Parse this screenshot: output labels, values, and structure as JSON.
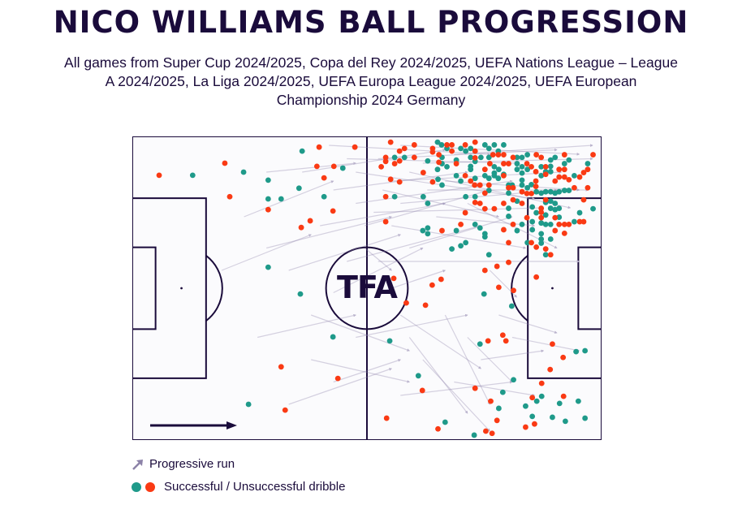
{
  "title": "NICO WILLIAMS BALL PROGRESSION",
  "subtitle_lines": [
    "All games from Super Cup 2024/2025, Copa del Rey 2024/2025, UEFA Nations League – League",
    "A 2024/2025, La Liga 2024/2025, UEFA Europa League 2024/2025, UEFA European",
    "Championship 2024 Germany"
  ],
  "logo_text": "TFA",
  "legend": {
    "run_label": "Progressive run",
    "dribble_label": "Successful / Unsuccessful dribble"
  },
  "colors": {
    "successful": "#1f9a8a",
    "unsuccessful": "#fa3a14",
    "run": "#8c82a8",
    "lines": "#1a0b3b"
  },
  "chart_data": {
    "type": "scatter",
    "title": "NICO WILLIAMS BALL PROGRESSION",
    "pitch_length_m": 105,
    "pitch_width_m": 68,
    "attack_direction": "left-to-right",
    "progressive_runs": [
      [
        38,
        8,
        70,
        3
      ],
      [
        45,
        12,
        75,
        8
      ],
      [
        50,
        15,
        85,
        10
      ],
      [
        55,
        5,
        95,
        3
      ],
      [
        42,
        20,
        70,
        15
      ],
      [
        30,
        25,
        58,
        18
      ],
      [
        35,
        30,
        60,
        22
      ],
      [
        60,
        2,
        100,
        4
      ],
      [
        58,
        10,
        96,
        8
      ],
      [
        65,
        6,
        103,
        5
      ],
      [
        52,
        20,
        80,
        12
      ],
      [
        48,
        28,
        78,
        20
      ],
      [
        62,
        25,
        85,
        18
      ],
      [
        70,
        10,
        100,
        12
      ],
      [
        75,
        15,
        95,
        25
      ],
      [
        68,
        18,
        90,
        20
      ],
      [
        55,
        35,
        70,
        30
      ],
      [
        40,
        40,
        62,
        48
      ],
      [
        45,
        55,
        60,
        50
      ],
      [
        35,
        60,
        58,
        52
      ],
      [
        60,
        58,
        85,
        55
      ],
      [
        62,
        45,
        75,
        62
      ],
      [
        70,
        40,
        80,
        60
      ],
      [
        75,
        45,
        85,
        55
      ],
      [
        82,
        40,
        95,
        44
      ],
      [
        78,
        50,
        92,
        48
      ],
      [
        20,
        30,
        40,
        22
      ],
      [
        25,
        18,
        45,
        10
      ],
      [
        30,
        8,
        50,
        6
      ],
      [
        45,
        35,
        65,
        25
      ],
      [
        55,
        28,
        100,
        28
      ],
      [
        60,
        15,
        95,
        12
      ],
      [
        58,
        20,
        88,
        25
      ],
      [
        66,
        12,
        102,
        12
      ],
      [
        72,
        4,
        103,
        2
      ],
      [
        60,
        40,
        78,
        52
      ],
      [
        80,
        30,
        86,
        36
      ],
      [
        50,
        45,
        75,
        40
      ],
      [
        40,
        50,
        62,
        55
      ],
      [
        65,
        50,
        80,
        66
      ],
      [
        72,
        55,
        90,
        58
      ],
      [
        85,
        45,
        100,
        48
      ],
      [
        52,
        25,
        58,
        30
      ],
      [
        28,
        45,
        50,
        40
      ],
      [
        44,
        2,
        80,
        4
      ],
      [
        50,
        8,
        90,
        14
      ],
      [
        56,
        12,
        82,
        18
      ],
      [
        62,
        8,
        98,
        16
      ],
      [
        48,
        5,
        86,
        6
      ],
      [
        54,
        17,
        92,
        16
      ]
    ],
    "successful_dribbles": [
      [
        13.5,
        8.7
      ],
      [
        24.9,
        8.0
      ],
      [
        30.4,
        9.8
      ],
      [
        30.4,
        14.0
      ],
      [
        33.3,
        14.0
      ],
      [
        38.0,
        3.3
      ],
      [
        37.3,
        11.6
      ],
      [
        42.9,
        13.5
      ],
      [
        30.4,
        29.3
      ],
      [
        37.6,
        35.3
      ],
      [
        44.9,
        44.9
      ],
      [
        26.0,
        60.0
      ],
      [
        47.1,
        7.1
      ],
      [
        68.3,
        1.3
      ],
      [
        69.2,
        1.9
      ],
      [
        70.4,
        2.7
      ],
      [
        73.5,
        2.7
      ],
      [
        74.6,
        3.3
      ],
      [
        75.7,
        2.7
      ],
      [
        78.9,
        1.9
      ],
      [
        81.0,
        1.9
      ],
      [
        83.1,
        1.9
      ],
      [
        79.8,
        2.7
      ],
      [
        81.9,
        3.3
      ],
      [
        58.7,
        4.7
      ],
      [
        60.9,
        4.7
      ],
      [
        66.1,
        5.5
      ],
      [
        69.3,
        4.7
      ],
      [
        69.3,
        6.1
      ],
      [
        70.4,
        6.8
      ],
      [
        72.5,
        5.3
      ],
      [
        75.7,
        4.7
      ],
      [
        75.7,
        6.7
      ],
      [
        75.7,
        7.4
      ],
      [
        76.7,
        5.6
      ],
      [
        78.0,
        4.7
      ],
      [
        79.8,
        4.7
      ],
      [
        81.0,
        6.8
      ],
      [
        82.0,
        7.4
      ],
      [
        83.1,
        8.5
      ],
      [
        81.0,
        8.2
      ],
      [
        81.9,
        9.4
      ],
      [
        86.1,
        4.7
      ],
      [
        87.2,
        4.7
      ],
      [
        88.4,
        4.1
      ],
      [
        86.1,
        6.1
      ],
      [
        86.1,
        7.4
      ],
      [
        87.2,
        6.8
      ],
      [
        87.2,
        8.2
      ],
      [
        88.4,
        7.4
      ],
      [
        91.5,
        6.8
      ],
      [
        92.5,
        7.9
      ],
      [
        93.6,
        5.3
      ],
      [
        93.6,
        6.7
      ],
      [
        93.6,
        7.9
      ],
      [
        94.6,
        4.7
      ],
      [
        96.7,
        6.1
      ],
      [
        97.7,
        5.3
      ],
      [
        101.9,
        6.1
      ],
      [
        68.3,
        7.4
      ],
      [
        68.4,
        9.6
      ],
      [
        69.3,
        10.9
      ],
      [
        72.5,
        8.8
      ],
      [
        73.5,
        10.0
      ],
      [
        76.7,
        9.4
      ],
      [
        78.9,
        8.8
      ],
      [
        79.8,
        9.4
      ],
      [
        81.0,
        8.8
      ],
      [
        84.2,
        10.9
      ],
      [
        84.2,
        12.7
      ],
      [
        85.0,
        10.9
      ],
      [
        87.2,
        9.8
      ],
      [
        87.2,
        10.9
      ],
      [
        88.4,
        11.5
      ],
      [
        89.3,
        10.8
      ],
      [
        90.4,
        12.4
      ],
      [
        91.5,
        12.7
      ],
      [
        92.5,
        12.4
      ],
      [
        93.6,
        12.4
      ],
      [
        94.6,
        12.7
      ],
      [
        95.5,
        12.4
      ],
      [
        96.7,
        12.1
      ],
      [
        97.7,
        12.1
      ],
      [
        98.9,
        8.8
      ],
      [
        91.5,
        8.8
      ],
      [
        65.1,
        13.5
      ],
      [
        66.1,
        15.0
      ],
      [
        58.7,
        13.5
      ],
      [
        74.6,
        13.5
      ],
      [
        76.7,
        13.5
      ],
      [
        79.8,
        12.1
      ],
      [
        84.2,
        16.1
      ],
      [
        84.2,
        17.9
      ],
      [
        86.1,
        14.5
      ],
      [
        89.5,
        15.8
      ],
      [
        90.4,
        17.1
      ],
      [
        92.5,
        14.8
      ],
      [
        93.6,
        14.5
      ],
      [
        94.6,
        15.0
      ],
      [
        94.6,
        16.4
      ],
      [
        95.5,
        16.1
      ],
      [
        93.6,
        16.1
      ],
      [
        92.5,
        17.6
      ],
      [
        91.5,
        19.4
      ],
      [
        92.5,
        19.7
      ],
      [
        93.6,
        19.7
      ],
      [
        95.5,
        18.1
      ],
      [
        98.9,
        19.1
      ],
      [
        100.1,
        17.1
      ],
      [
        103.1,
        16.2
      ],
      [
        65.0,
        21.1
      ],
      [
        66.1,
        20.5
      ],
      [
        66.1,
        21.8
      ],
      [
        72.5,
        21.1
      ],
      [
        76.7,
        19.7
      ],
      [
        77.8,
        20.5
      ],
      [
        78.9,
        21.8
      ],
      [
        78.9,
        22.5
      ],
      [
        86.1,
        21.1
      ],
      [
        87.2,
        19.7
      ],
      [
        89.5,
        19.1
      ],
      [
        89.5,
        20.9
      ],
      [
        91.5,
        21.8
      ],
      [
        91.5,
        23.0
      ],
      [
        91.5,
        23.9
      ],
      [
        88.4,
        23.8
      ],
      [
        93.6,
        23.0
      ],
      [
        71.5,
        25.2
      ],
      [
        73.5,
        24.5
      ],
      [
        74.6,
        23.8
      ],
      [
        79.8,
        26.5
      ],
      [
        92.5,
        26.5
      ],
      [
        84.9,
        38.0
      ],
      [
        77.8,
        46.5
      ],
      [
        85.3,
        54.5
      ],
      [
        82.9,
        57.3
      ],
      [
        88.0,
        60.4
      ],
      [
        90.5,
        59.3
      ],
      [
        91.6,
        58.2
      ],
      [
        99.8,
        59.3
      ],
      [
        96.9,
        63.8
      ],
      [
        94.0,
        62.9
      ],
      [
        101.3,
        63.1
      ],
      [
        99.3,
        48.2
      ],
      [
        101.3,
        48.0
      ],
      [
        95.6,
        59.8
      ],
      [
        57.6,
        45.8
      ],
      [
        64.0,
        53.6
      ],
      [
        70.0,
        64.0
      ],
      [
        76.5,
        66.9
      ],
      [
        82.0,
        60.9
      ],
      [
        89.5,
        62.7
      ],
      [
        78.7,
        35.3
      ]
    ],
    "unsuccessful_dribbles": [
      [
        6.0,
        8.7
      ],
      [
        20.7,
        6.0
      ],
      [
        21.8,
        13.5
      ],
      [
        30.4,
        16.4
      ],
      [
        37.8,
        20.4
      ],
      [
        39.8,
        18.9
      ],
      [
        41.8,
        2.4
      ],
      [
        41.3,
        6.7
      ],
      [
        42.9,
        9.3
      ],
      [
        45.1,
        6.7
      ],
      [
        44.9,
        16.7
      ],
      [
        49.8,
        2.4
      ],
      [
        33.3,
        51.6
      ],
      [
        34.2,
        61.3
      ],
      [
        46.0,
        54.2
      ],
      [
        57.8,
        1.3
      ],
      [
        59.8,
        3.3
      ],
      [
        60.9,
        2.7
      ],
      [
        63.1,
        1.9
      ],
      [
        67.2,
        2.7
      ],
      [
        67.2,
        3.5
      ],
      [
        68.6,
        4.1
      ],
      [
        70.4,
        1.9
      ],
      [
        71.5,
        1.9
      ],
      [
        71.5,
        3.3
      ],
      [
        74.5,
        1.9
      ],
      [
        76.7,
        1.3
      ],
      [
        76.7,
        3.3
      ],
      [
        76.7,
        4.8
      ],
      [
        80.7,
        4.1
      ],
      [
        81.9,
        4.1
      ],
      [
        83.1,
        4.1
      ],
      [
        85.2,
        4.7
      ],
      [
        90.4,
        4.1
      ],
      [
        91.5,
        4.7
      ],
      [
        96.7,
        4.1
      ],
      [
        103.1,
        4.1
      ],
      [
        56.7,
        4.7
      ],
      [
        56.7,
        5.6
      ],
      [
        58.7,
        6.1
      ],
      [
        59.8,
        5.5
      ],
      [
        63.1,
        4.7
      ],
      [
        55.7,
        6.8
      ],
      [
        65.1,
        8.1
      ],
      [
        68.6,
        5.8
      ],
      [
        72.5,
        6.1
      ],
      [
        78.9,
        7.4
      ],
      [
        80.0,
        6.1
      ],
      [
        83.1,
        6.1
      ],
      [
        84.2,
        6.1
      ],
      [
        88.3,
        6.1
      ],
      [
        89.3,
        6.8
      ],
      [
        90.3,
        7.9
      ],
      [
        92.5,
        6.8
      ],
      [
        95.5,
        7.4
      ],
      [
        96.7,
        7.4
      ],
      [
        101.9,
        7.4
      ],
      [
        101.0,
        8.1
      ],
      [
        57.8,
        9.6
      ],
      [
        59.8,
        10.2
      ],
      [
        67.2,
        10.2
      ],
      [
        74.5,
        8.8
      ],
      [
        75.7,
        10.0
      ],
      [
        76.6,
        10.9
      ],
      [
        77.8,
        10.9
      ],
      [
        79.8,
        10.9
      ],
      [
        83.1,
        8.8
      ],
      [
        84.2,
        11.5
      ],
      [
        85.2,
        11.5
      ],
      [
        87.2,
        12.4
      ],
      [
        88.3,
        12.8
      ],
      [
        89.3,
        12.8
      ],
      [
        90.3,
        10.0
      ],
      [
        90.3,
        11.2
      ],
      [
        92.5,
        8.5
      ],
      [
        94.6,
        10.0
      ],
      [
        95.5,
        9.1
      ],
      [
        96.7,
        9.1
      ],
      [
        97.7,
        9.7
      ],
      [
        98.9,
        11.5
      ],
      [
        100.1,
        9.1
      ],
      [
        101.9,
        11.5
      ],
      [
        56.7,
        13.5
      ],
      [
        78.9,
        12.7
      ],
      [
        76.7,
        14.8
      ],
      [
        77.8,
        15.0
      ],
      [
        78.9,
        16.2
      ],
      [
        81.0,
        16.2
      ],
      [
        83.1,
        15.0
      ],
      [
        85.2,
        14.2
      ],
      [
        87.2,
        15.0
      ],
      [
        92.5,
        14.2
      ],
      [
        101.0,
        14.2
      ],
      [
        74.5,
        17.1
      ],
      [
        56.7,
        19.1
      ],
      [
        69.3,
        21.1
      ],
      [
        73.5,
        19.7
      ],
      [
        83.1,
        20.9
      ],
      [
        85.2,
        19.7
      ],
      [
        84.2,
        23.8
      ],
      [
        88.3,
        18.2
      ],
      [
        89.3,
        23.8
      ],
      [
        90.4,
        24.8
      ],
      [
        92.5,
        25.2
      ],
      [
        93.6,
        26.5
      ],
      [
        94.6,
        18.2
      ],
      [
        95.5,
        19.7
      ],
      [
        96.7,
        19.7
      ],
      [
        97.7,
        19.7
      ],
      [
        100.1,
        19.1
      ],
      [
        101.0,
        19.1
      ],
      [
        94.6,
        21.1
      ],
      [
        96.7,
        21.7
      ],
      [
        91.5,
        17.0
      ],
      [
        91.5,
        16.1
      ],
      [
        91.5,
        18.2
      ],
      [
        78.9,
        30.0
      ],
      [
        81.6,
        29.1
      ],
      [
        84.2,
        28.2
      ],
      [
        85.3,
        34.5
      ],
      [
        90.4,
        31.5
      ],
      [
        82.0,
        33.8
      ],
      [
        69.1,
        32.0
      ],
      [
        67.1,
        33.3
      ],
      [
        58.5,
        31.8
      ],
      [
        61.3,
        37.3
      ],
      [
        65.6,
        37.8
      ],
      [
        79.6,
        45.8
      ],
      [
        82.9,
        44.5
      ],
      [
        83.6,
        45.8
      ],
      [
        76.7,
        56.4
      ],
      [
        80.2,
        59.3
      ],
      [
        89.5,
        58.5
      ],
      [
        91.6,
        55.3
      ],
      [
        94.0,
        46.5
      ],
      [
        96.4,
        49.5
      ],
      [
        96.5,
        58.2
      ],
      [
        90.0,
        64.4
      ],
      [
        88.0,
        65.1
      ],
      [
        79.1,
        66.0
      ],
      [
        80.5,
        66.5
      ],
      [
        93.5,
        52.2
      ],
      [
        56.9,
        63.1
      ],
      [
        64.9,
        56.9
      ],
      [
        68.4,
        65.5
      ],
      [
        81.6,
        63.6
      ]
    ]
  }
}
